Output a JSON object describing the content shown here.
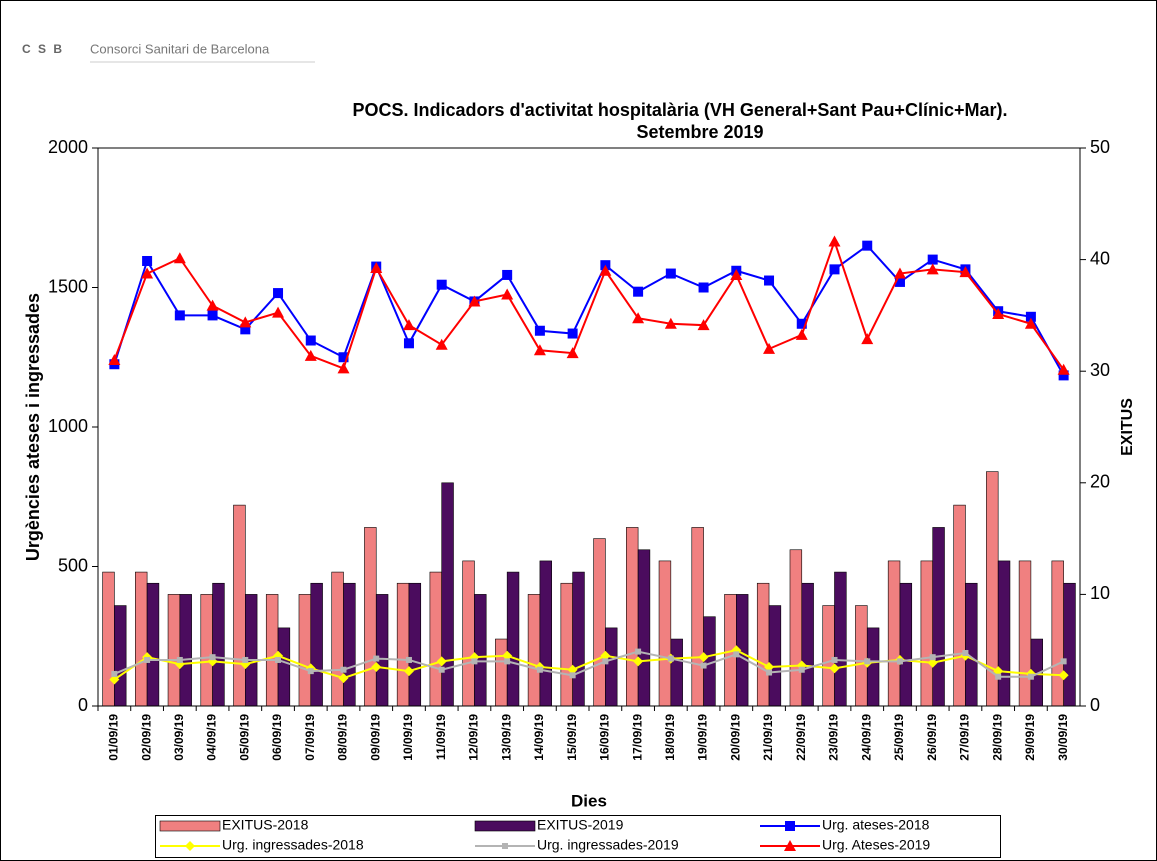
{
  "logo": {
    "mark": "C S B",
    "name": "Consorci Sanitari de Barcelona"
  },
  "chart_data": {
    "type": "bar",
    "title": "POCS.  Indicadors d'activitat hospitalària (VH General+Sant Pau+Clínic+Mar).",
    "subtitle": "Setembre 2019",
    "ylabel": "Urgències ateses i ingressades",
    "y2label": "EXITUS",
    "xlabel": "Dies",
    "categories": [
      "01/09/19",
      "02/09/19",
      "03/09/19",
      "04/09/19",
      "05/09/19",
      "06/09/19",
      "07/09/19",
      "08/09/19",
      "09/09/19",
      "10/09/19",
      "11/09/19",
      "12/09/19",
      "13/09/19",
      "14/09/19",
      "15/09/19",
      "16/09/19",
      "17/09/19",
      "18/09/19",
      "19/09/19",
      "20/09/19",
      "21/09/19",
      "22/09/19",
      "23/09/19",
      "24/09/19",
      "25/09/19",
      "26/09/19",
      "27/09/19",
      "28/09/19",
      "29/09/19",
      "30/09/19"
    ],
    "ylim": [
      0,
      2000
    ],
    "yticks": [
      0,
      500,
      1000,
      1500,
      2000
    ],
    "y2lim": [
      0,
      50
    ],
    "y2ticks": [
      0,
      10,
      20,
      30,
      40,
      50
    ],
    "series": [
      {
        "name": "EXITUS-2018",
        "type": "bar",
        "axis": "y2",
        "color": "#f08080",
        "values": [
          12,
          12,
          10,
          10,
          18,
          10,
          10,
          12,
          16,
          11,
          12,
          13,
          6,
          10,
          11,
          15,
          16,
          13,
          16,
          10,
          11,
          14,
          9,
          9,
          13,
          13,
          18,
          21,
          13,
          13
        ]
      },
      {
        "name": "EXITUS-2019",
        "type": "bar",
        "axis": "y2",
        "color": "#4b0c5e",
        "values": [
          9,
          11,
          10,
          11,
          10,
          7,
          11,
          11,
          10,
          11,
          20,
          10,
          12,
          13,
          12,
          7,
          14,
          6,
          8,
          10,
          9,
          11,
          12,
          7,
          11,
          16,
          11,
          13,
          6,
          11
        ]
      },
      {
        "name": "Urg. ateses-2018",
        "type": "line",
        "marker": "square",
        "color": "#0000ff",
        "values": [
          1225,
          1595,
          1400,
          1400,
          1350,
          1480,
          1310,
          1250,
          1575,
          1300,
          1510,
          1450,
          1545,
          1345,
          1335,
          1580,
          1485,
          1550,
          1500,
          1560,
          1525,
          1370,
          1565,
          1650,
          1520,
          1600,
          1565,
          1415,
          1395,
          1185
        ]
      },
      {
        "name": "Urg. ingressades-2018",
        "type": "line",
        "marker": "diamond",
        "color": "#ffff00",
        "values": [
          95,
          175,
          150,
          160,
          150,
          180,
          135,
          100,
          140,
          125,
          160,
          175,
          180,
          140,
          130,
          180,
          160,
          170,
          175,
          200,
          140,
          145,
          135,
          155,
          165,
          155,
          180,
          125,
          115,
          110
        ]
      },
      {
        "name": "Urg. ingressades-2019",
        "type": "line",
        "marker": "small-square",
        "color": "#b4b4b4",
        "values": [
          115,
          165,
          165,
          175,
          165,
          165,
          125,
          130,
          170,
          165,
          130,
          160,
          160,
          130,
          110,
          160,
          195,
          170,
          145,
          185,
          120,
          130,
          165,
          160,
          160,
          175,
          190,
          105,
          105,
          160
        ]
      },
      {
        "name": "Urg. Ateses-2019",
        "type": "line",
        "marker": "triangle",
        "color": "#ff0000",
        "values": [
          1240,
          1550,
          1605,
          1435,
          1375,
          1410,
          1255,
          1210,
          1570,
          1365,
          1295,
          1450,
          1475,
          1275,
          1265,
          1560,
          1390,
          1370,
          1365,
          1545,
          1280,
          1330,
          1665,
          1315,
          1550,
          1565,
          1555,
          1405,
          1370,
          1205
        ]
      }
    ]
  }
}
